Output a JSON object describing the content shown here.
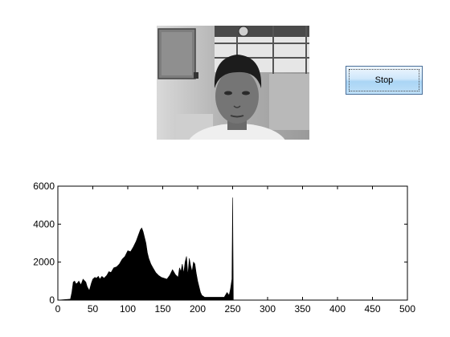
{
  "webcam": {
    "description_icon": "webcam-frame-person"
  },
  "controls": {
    "stop_label": "Stop"
  },
  "chart_data": {
    "type": "area",
    "title": "",
    "xlabel": "",
    "ylabel": "",
    "xlim": [
      0,
      500
    ],
    "ylim": [
      0,
      6000
    ],
    "grid": false,
    "x_ticks": [
      "0",
      "50",
      "100",
      "150",
      "200",
      "250",
      "300",
      "350",
      "400",
      "450",
      "500"
    ],
    "y_ticks": [
      "0",
      "2000",
      "4000",
      "6000"
    ],
    "series": [
      {
        "x": [
          0,
          18,
          20,
          22,
          24,
          26,
          28,
          30,
          33,
          36,
          40,
          42,
          45,
          48,
          50,
          53,
          55,
          58,
          60,
          63,
          66,
          70,
          73,
          76,
          80,
          84,
          88,
          92,
          96,
          100,
          104,
          108,
          112,
          115,
          118,
          120,
          122,
          124,
          126,
          128,
          130,
          133,
          136,
          140,
          144,
          148,
          152,
          156,
          160,
          164,
          168,
          172,
          174,
          176,
          178,
          180,
          182,
          184,
          186,
          188,
          190,
          192,
          194,
          196,
          198,
          200,
          202,
          204,
          206,
          208,
          210,
          214,
          218,
          222,
          226,
          230,
          234,
          238,
          242,
          245,
          247,
          249,
          250,
          251,
          252,
          253,
          255,
          500
        ],
        "values": [
          0,
          50,
          400,
          950,
          1000,
          850,
          900,
          1000,
          800,
          1100,
          950,
          700,
          500,
          900,
          1100,
          1200,
          1150,
          1250,
          1100,
          1250,
          1150,
          1300,
          1500,
          1450,
          1700,
          1750,
          1900,
          2150,
          2300,
          2600,
          2550,
          2800,
          3100,
          3400,
          3700,
          3800,
          3600,
          3300,
          3000,
          2500,
          2200,
          1900,
          1700,
          1450,
          1300,
          1200,
          1150,
          1100,
          1300,
          1600,
          1350,
          1200,
          1700,
          1500,
          1900,
          1400,
          2000,
          2300,
          1300,
          2200,
          1800,
          1500,
          2000,
          1900,
          1400,
          1000,
          700,
          400,
          250,
          200,
          150,
          150,
          150,
          150,
          150,
          150,
          150,
          150,
          400,
          250,
          600,
          1100,
          5400,
          0,
          0,
          0,
          0,
          0
        ]
      }
    ]
  }
}
